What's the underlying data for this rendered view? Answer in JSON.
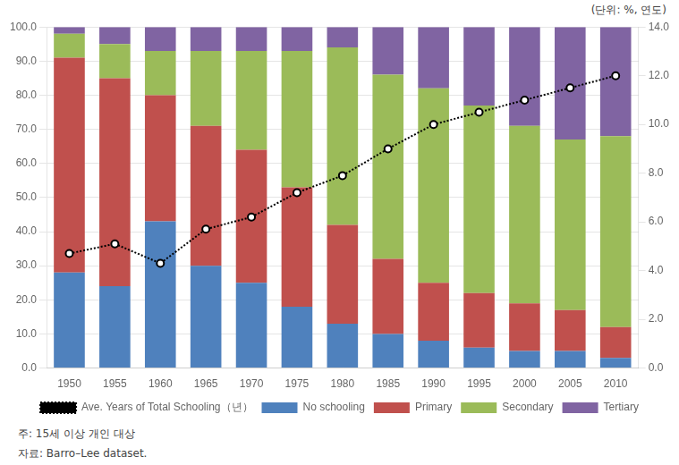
{
  "chart_data": {
    "type": "bar",
    "stacked": true,
    "categories": [
      "1950",
      "1955",
      "1960",
      "1965",
      "1970",
      "1975",
      "1980",
      "1985",
      "1990",
      "1995",
      "2000",
      "2005",
      "2010"
    ],
    "series": [
      {
        "name": "No schooling",
        "color": "#4F81BD",
        "values": [
          28,
          24,
          43,
          30,
          25,
          18,
          13,
          10,
          8,
          6,
          5,
          5,
          3
        ]
      },
      {
        "name": "Primary",
        "color": "#C0504D",
        "values": [
          63,
          61,
          37,
          41,
          39,
          35,
          29,
          22,
          17,
          16,
          14,
          12,
          9
        ]
      },
      {
        "name": "Secondary",
        "color": "#9BBB59",
        "values": [
          7,
          10,
          13,
          22,
          29,
          40,
          52,
          54,
          57,
          55,
          52,
          50,
          56
        ]
      },
      {
        "name": "Tertiary",
        "color": "#8064A2",
        "values": [
          2,
          5,
          7,
          7,
          7,
          7,
          6,
          14,
          18,
          23,
          29,
          33,
          32
        ]
      },
      {
        "name": "Ave. Years of Total Schooling（년）",
        "type": "line",
        "axis": "y2",
        "color": "#000000",
        "line_style": "dotted",
        "marker": "circle",
        "values": [
          4.7,
          5.1,
          4.3,
          5.7,
          6.2,
          7.2,
          7.9,
          9.0,
          10.0,
          10.5,
          11.0,
          11.5,
          12.0
        ]
      }
    ],
    "ylim": [
      0,
      100
    ],
    "yticks": [
      {
        "value": 0,
        "label": "0.0"
      },
      {
        "value": 10,
        "label": "10.0"
      },
      {
        "value": 20,
        "label": "20.0"
      },
      {
        "value": 30,
        "label": "30.0"
      },
      {
        "value": 40,
        "label": "40.0"
      },
      {
        "value": 50,
        "label": "50.0"
      },
      {
        "value": 60,
        "label": "60.0"
      },
      {
        "value": 70,
        "label": "70.0"
      },
      {
        "value": 80,
        "label": "80.0"
      },
      {
        "value": 90,
        "label": "90.0"
      },
      {
        "value": 100,
        "label": "100.0"
      }
    ],
    "y2lim": [
      0,
      14.0
    ],
    "y2ticks": [
      {
        "value": 0,
        "label": "0.0"
      },
      {
        "value": 2,
        "label": "2.0"
      },
      {
        "value": 4,
        "label": "4.0"
      },
      {
        "value": 6,
        "label": "6.0"
      },
      {
        "value": 8,
        "label": "8.0"
      },
      {
        "value": 10,
        "label": "10.0"
      },
      {
        "value": 12,
        "label": "12.0"
      },
      {
        "value": 14,
        "label": "14.0"
      }
    ],
    "grid": true,
    "legend": "bottom",
    "annotations": [
      "(단위: %, 연도)",
      "주:  15세 이상 개인 대상",
      "자료:  Barro–Lee dataset."
    ]
  }
}
